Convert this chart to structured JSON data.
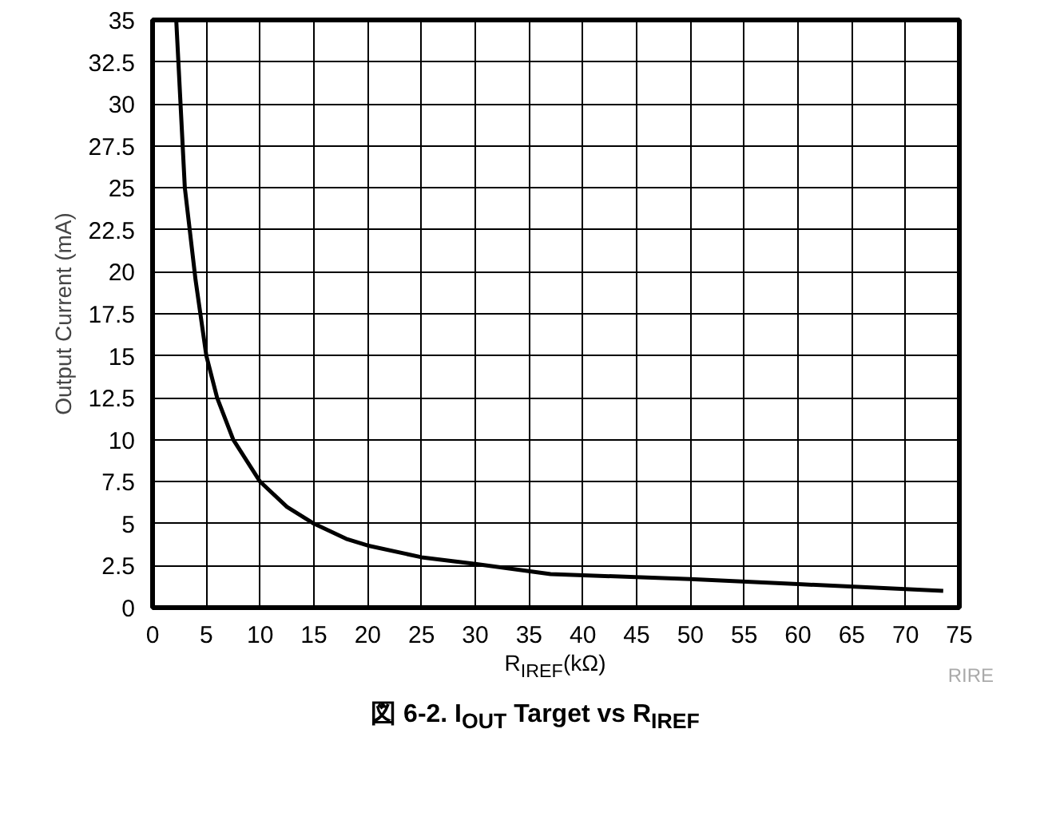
{
  "chart_data": {
    "type": "line",
    "title": "図 6-2. I$_{OUT}$ Target vs R$_{IREF}$",
    "xlabel": "R$_{IREF}$(kΩ)",
    "ylabel": "Output Current (mA)",
    "annotations": [
      "RIRE"
    ],
    "x": [
      2.2,
      3,
      4,
      5,
      6,
      7.5,
      10,
      12.5,
      15,
      18,
      20,
      25,
      30,
      37,
      50,
      60,
      73.5
    ],
    "series": [
      {
        "color": "#000000",
        "values": [
          35,
          25,
          19.5,
          15,
          12.5,
          10,
          7.5,
          6,
          5,
          4.1,
          3.7,
          3,
          2.6,
          2,
          1.7,
          1.4,
          1.0
        ]
      }
    ],
    "xlim": [
      0,
      75
    ],
    "ylim": [
      0,
      35
    ],
    "xticks": [
      0,
      5,
      10,
      15,
      20,
      25,
      30,
      35,
      40,
      45,
      50,
      55,
      60,
      65,
      70,
      75
    ],
    "yticks": [
      0,
      2.5,
      5,
      7.5,
      10,
      12.5,
      15,
      17.5,
      20,
      22.5,
      25,
      27.5,
      30,
      32.5,
      35
    ],
    "grid": true,
    "line_style": "solid"
  }
}
